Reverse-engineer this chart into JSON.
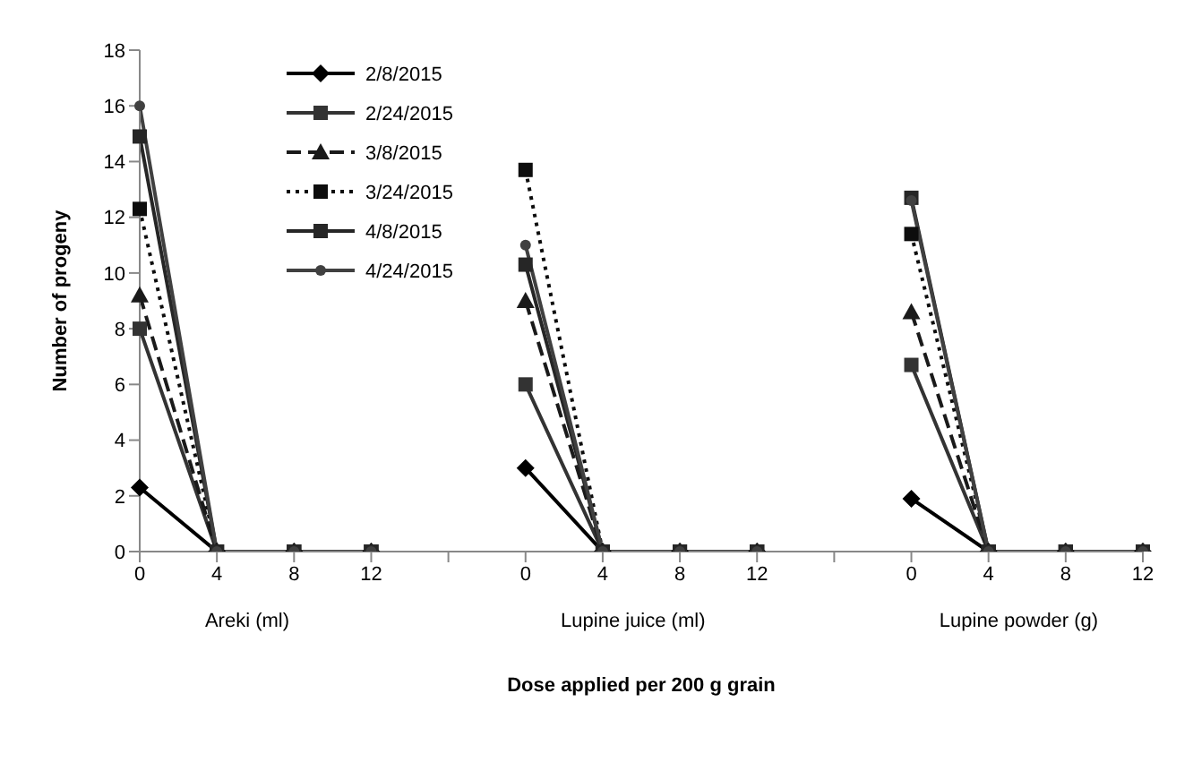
{
  "chart_data": {
    "type": "line",
    "ylabel": "Number of progeny",
    "xlabel": "Dose applied per 200 g grain",
    "categories": [
      "0",
      "4",
      "8",
      "12",
      null,
      "0",
      "4",
      "8",
      "12",
      null,
      "0",
      "4",
      "8",
      "12"
    ],
    "annotations": [
      "Areki (ml)",
      "Lupine juice (ml)",
      "Lupine powder (g)"
    ],
    "ylim": [
      0,
      18
    ],
    "yticks": [
      0,
      2,
      4,
      6,
      8,
      10,
      12,
      14,
      16,
      18
    ],
    "grid": false,
    "legend": "top left",
    "series": [
      {
        "name": "2/8/2015",
        "color": "#000000",
        "marker": "diamond",
        "line_style": "solid",
        "values": [
          2.3,
          0,
          0,
          0,
          null,
          3.0,
          0,
          0,
          0,
          null,
          1.9,
          0,
          0,
          0
        ]
      },
      {
        "name": "2/24/2015",
        "color": "#333333",
        "marker": "square",
        "line_style": "solid",
        "values": [
          8.0,
          0,
          0,
          0,
          null,
          6.0,
          0,
          0,
          0,
          null,
          6.7,
          0,
          0,
          0
        ]
      },
      {
        "name": "3/8/2015",
        "color": "#1a1a1a",
        "marker": "triangle",
        "line_style": "dashed",
        "values": [
          9.2,
          0,
          0,
          0,
          null,
          9.0,
          0,
          0,
          0,
          null,
          8.6,
          0,
          0,
          0
        ]
      },
      {
        "name": "3/24/2015",
        "color": "#0d0d0d",
        "marker": "square",
        "line_style": "dotted",
        "values": [
          12.3,
          0,
          0,
          0,
          null,
          13.7,
          0,
          0,
          0,
          null,
          11.4,
          0,
          0,
          0
        ]
      },
      {
        "name": "4/8/2015",
        "color": "#262626",
        "marker": "square",
        "line_style": "solid",
        "values": [
          14.9,
          0,
          0,
          0,
          null,
          10.3,
          0,
          0,
          0,
          null,
          12.7,
          0,
          0,
          0
        ]
      },
      {
        "name": "4/24/2015",
        "color": "#404040",
        "marker": "circle",
        "line_style": "solid",
        "values": [
          16.0,
          0,
          0,
          0,
          null,
          11.0,
          0,
          0,
          0,
          null,
          12.6,
          0,
          0,
          0
        ]
      }
    ]
  }
}
